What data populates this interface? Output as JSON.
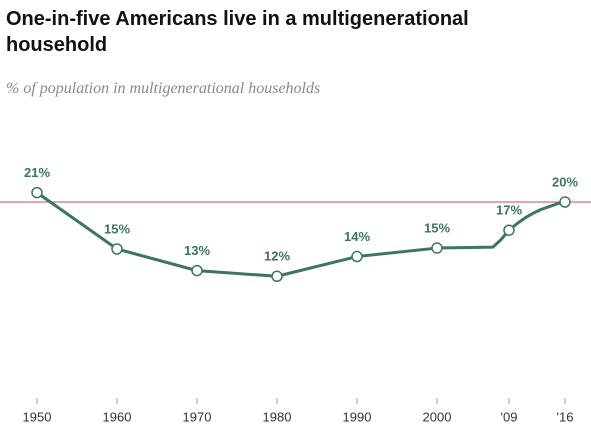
{
  "chart_data": {
    "type": "line",
    "title": "One-in-five Americans live in a multigenerational household",
    "subtitle": "% of population in multigenerational households",
    "x": [
      1950,
      1960,
      1970,
      1980,
      1990,
      2000,
      2007,
      2008,
      2009,
      2010,
      2011,
      2012,
      2013,
      2014,
      2015,
      2016
    ],
    "series": [
      {
        "color": "#3d7560",
        "values": [
          21,
          15,
          12.7,
          12.1,
          14.2,
          15.1,
          15.2,
          16,
          17,
          17.7,
          18.3,
          18.8,
          19.2,
          19.5,
          19.8,
          20
        ],
        "value_labels": [
          "21%",
          "15%",
          "13%",
          "12%",
          "14%",
          "15%",
          null,
          null,
          "17%",
          null,
          null,
          null,
          null,
          null,
          null,
          "20%"
        ]
      }
    ],
    "reference_line": {
      "value": 20,
      "color": "#c0504d"
    },
    "xlim": [
      1948,
      2018
    ],
    "xticks": [
      1950,
      1960,
      1970,
      1980,
      1990,
      2000,
      {
        "value": 2009,
        "label": "'09"
      },
      {
        "value": 2016,
        "label": "'16"
      }
    ],
    "ylim": [
      0,
      25
    ]
  }
}
